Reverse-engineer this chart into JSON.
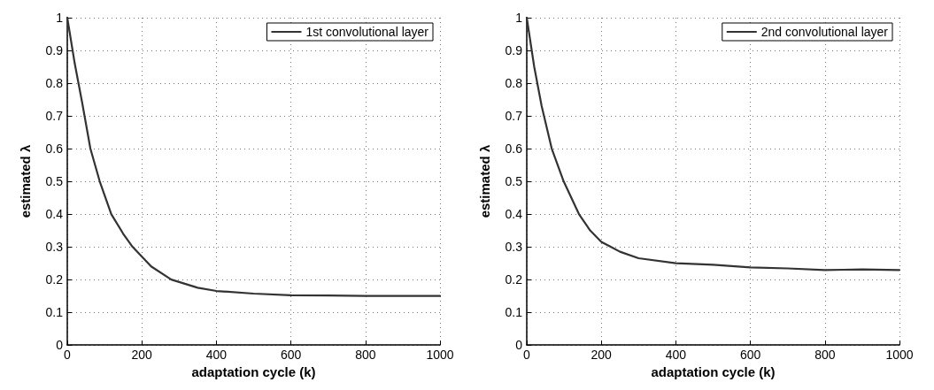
{
  "chart_data": [
    {
      "type": "line",
      "xlabel": "adaptation cycle (k)",
      "ylabel": "estimated λ",
      "xlim": [
        0,
        1000
      ],
      "ylim": [
        0,
        1
      ],
      "xticks": [
        0,
        200,
        400,
        600,
        800,
        1000
      ],
      "yticks": [
        0,
        0.1,
        0.2,
        0.3,
        0.4,
        0.5,
        0.6,
        0.7,
        0.8,
        0.9,
        1
      ],
      "grid": true,
      "legend": "top right",
      "line_style": "solid",
      "marker": "none",
      "series": [
        {
          "name": "1st convolutional layer",
          "color": "#333333",
          "x": [
            0,
            20,
            40,
            62,
            87,
            118,
            150,
            175,
            225,
            279,
            350,
            400,
            500,
            600,
            700,
            800,
            1000
          ],
          "values": [
            1,
            0.86,
            0.74,
            0.6,
            0.5,
            0.4,
            0.34,
            0.3,
            0.24,
            0.2,
            0.175,
            0.165,
            0.157,
            0.152,
            0.151,
            0.15,
            0.15
          ]
        }
      ]
    },
    {
      "type": "line",
      "xlabel": "adaptation cycle (k)",
      "ylabel": "estimated λ",
      "xlim": [
        0,
        1000
      ],
      "ylim": [
        0,
        1
      ],
      "xticks": [
        0,
        200,
        400,
        600,
        800,
        1000
      ],
      "yticks": [
        0,
        0.1,
        0.2,
        0.3,
        0.4,
        0.5,
        0.6,
        0.7,
        0.8,
        0.9,
        1
      ],
      "grid": true,
      "legend": "top right",
      "line_style": "solid",
      "marker": "none",
      "series": [
        {
          "name": "2nd convolutional layer",
          "color": "#333333",
          "x": [
            0,
            20,
            40,
            67,
            99,
            140,
            170,
            200,
            225,
            250,
            300,
            400,
            500,
            600,
            700,
            800,
            850,
            900,
            1000
          ],
          "values": [
            1,
            0.85,
            0.73,
            0.6,
            0.5,
            0.4,
            0.35,
            0.315,
            0.3,
            0.285,
            0.265,
            0.25,
            0.245,
            0.237,
            0.234,
            0.229,
            0.23,
            0.231,
            0.229
          ]
        }
      ]
    }
  ]
}
